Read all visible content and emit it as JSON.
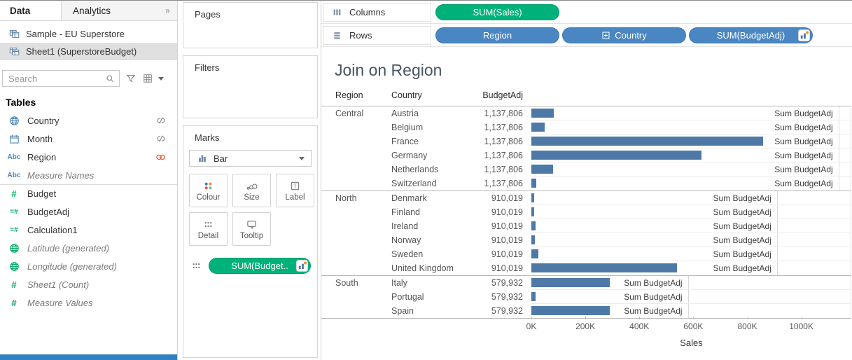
{
  "colors": {
    "bar": "#4e79a7",
    "pill_blue": "#4a87c2",
    "pill_green": "#00b27a",
    "dimension_icon": "#4e87b4",
    "measure_icon": "#00a862",
    "link_active": "#e8633a",
    "link_inactive": "#8a8a8a"
  },
  "left_panel": {
    "tabs": [
      {
        "label": "Data"
      },
      {
        "label": "Analytics"
      }
    ],
    "collapse_icon": "»",
    "data_sources": [
      {
        "label": "Sample - EU Superstore",
        "selected": false
      },
      {
        "label": "Sheet1 (SuperstoreBudget)",
        "selected": true
      }
    ],
    "search": {
      "placeholder": "Search"
    },
    "tables_header": "Tables",
    "fields": [
      {
        "label": "Country",
        "icon": "globe",
        "kind": "dimension",
        "right_icon": "unlink"
      },
      {
        "label": "Month",
        "icon": "calendar",
        "kind": "dimension",
        "right_icon": "unlink"
      },
      {
        "label": "Region",
        "icon": "abc",
        "kind": "dimension",
        "right_icon": "link"
      },
      {
        "label": "Measure Names",
        "icon": "abc",
        "kind": "dimension",
        "italic": true
      },
      {
        "label": "Budget",
        "icon": "hash",
        "kind": "measure",
        "divider_before": true
      },
      {
        "label": "BudgetAdj",
        "icon": "calc",
        "kind": "measure"
      },
      {
        "label": "Calculation1",
        "icon": "calc",
        "kind": "measure"
      },
      {
        "label": "Latitude (generated)",
        "icon": "globe",
        "kind": "measure",
        "italic": true
      },
      {
        "label": "Longitude (generated)",
        "icon": "globe",
        "kind": "measure",
        "italic": true
      },
      {
        "label": "Sheet1 (Count)",
        "icon": "hash",
        "kind": "measure",
        "italic": true
      },
      {
        "label": "Measure Values",
        "icon": "hash",
        "kind": "measure",
        "italic": true
      }
    ]
  },
  "cards": {
    "pages": "Pages",
    "filters": "Filters",
    "marks": {
      "title": "Marks",
      "mark_type": "Bar",
      "buttons": [
        {
          "label": "Colour",
          "icon": "color"
        },
        {
          "label": "Size",
          "icon": "size"
        },
        {
          "label": "Label",
          "icon": "label"
        },
        {
          "label": "Detail",
          "icon": "detail"
        },
        {
          "label": "Tooltip",
          "icon": "tooltip"
        }
      ],
      "pill": {
        "label": "SUM(Budget..",
        "shelf_icon": "detail"
      }
    }
  },
  "shelves": {
    "columns": {
      "label": "Columns",
      "pills": [
        {
          "label": "SUM(Sales)",
          "color": "green"
        }
      ]
    },
    "rows": {
      "label": "Rows",
      "pills": [
        {
          "label": "Region",
          "color": "blue"
        },
        {
          "label": "Country",
          "color": "blue",
          "left_icon": "plus-box"
        },
        {
          "label": "SUM(BudgetAdj)",
          "color": "blue",
          "right_icon": "badge"
        }
      ]
    }
  },
  "chart_data": {
    "type": "bar",
    "title": "Join on Region",
    "xlabel": "Sales",
    "bar_label": "Sum BudgetAdj",
    "columns": [
      "Region",
      "Country",
      "BudgetAdj"
    ],
    "x_ticks": [
      "0K",
      "200K",
      "400K",
      "600K",
      "800K",
      "1000K"
    ],
    "x_tick_values": [
      0,
      200000,
      400000,
      600000,
      800000,
      1000000
    ],
    "xlim": [
      0,
      1180000
    ],
    "regions": [
      {
        "region": "Central",
        "budget_adj": 1137806,
        "budget_adj_display": "1,137,806",
        "countries": [
          {
            "country": "Austria",
            "sales": 84000
          },
          {
            "country": "Belgium",
            "sales": 48000
          },
          {
            "country": "France",
            "sales": 859000
          },
          {
            "country": "Germany",
            "sales": 629000
          },
          {
            "country": "Netherlands",
            "sales": 81000
          },
          {
            "country": "Switzerland",
            "sales": 17000
          }
        ]
      },
      {
        "region": "North",
        "budget_adj": 910019,
        "budget_adj_display": "910,019",
        "countries": [
          {
            "country": "Denmark",
            "sales": 9000
          },
          {
            "country": "Finland",
            "sales": 9000
          },
          {
            "country": "Ireland",
            "sales": 16000
          },
          {
            "country": "Norway",
            "sales": 13000
          },
          {
            "country": "Sweden",
            "sales": 27000
          },
          {
            "country": "United Kingdom",
            "sales": 540000
          }
        ]
      },
      {
        "region": "South",
        "budget_adj": 579932,
        "budget_adj_display": "579,932",
        "countries": [
          {
            "country": "Italy",
            "sales": 291000
          },
          {
            "country": "Portugal",
            "sales": 16000
          },
          {
            "country": "Spain",
            "sales": 290000
          }
        ]
      }
    ]
  }
}
